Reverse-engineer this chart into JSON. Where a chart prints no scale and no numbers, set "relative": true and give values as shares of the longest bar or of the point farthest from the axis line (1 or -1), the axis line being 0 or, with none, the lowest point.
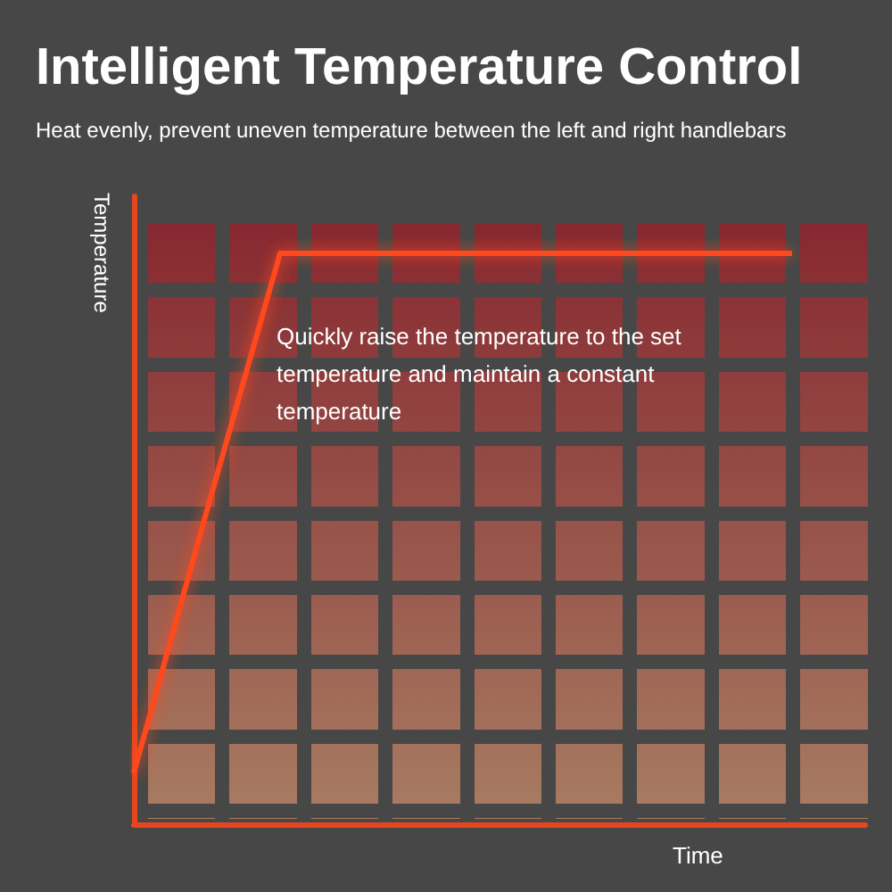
{
  "chart_data": {
    "type": "line",
    "relative": true,
    "title": "Intelligent Temperature Control",
    "subtitle": "Heat evenly, prevent uneven temperature between the left and right handlebars",
    "xlabel": "Time",
    "ylabel": "Temperature",
    "annotations": [
      "Quickly raise the temperature to the set temperature and maintain a constant temperature"
    ],
    "categories": [
      null,
      null,
      null,
      null,
      null,
      null,
      null,
      null,
      null,
      null,
      null
    ],
    "series": [
      {
        "color": "#ff4a1a",
        "values": [
          0.09,
          0.55,
          1,
          1,
          1,
          1,
          1,
          1,
          1,
          1,
          null
        ]
      }
    ],
    "marker": "none",
    "line_style": "solid"
  }
}
